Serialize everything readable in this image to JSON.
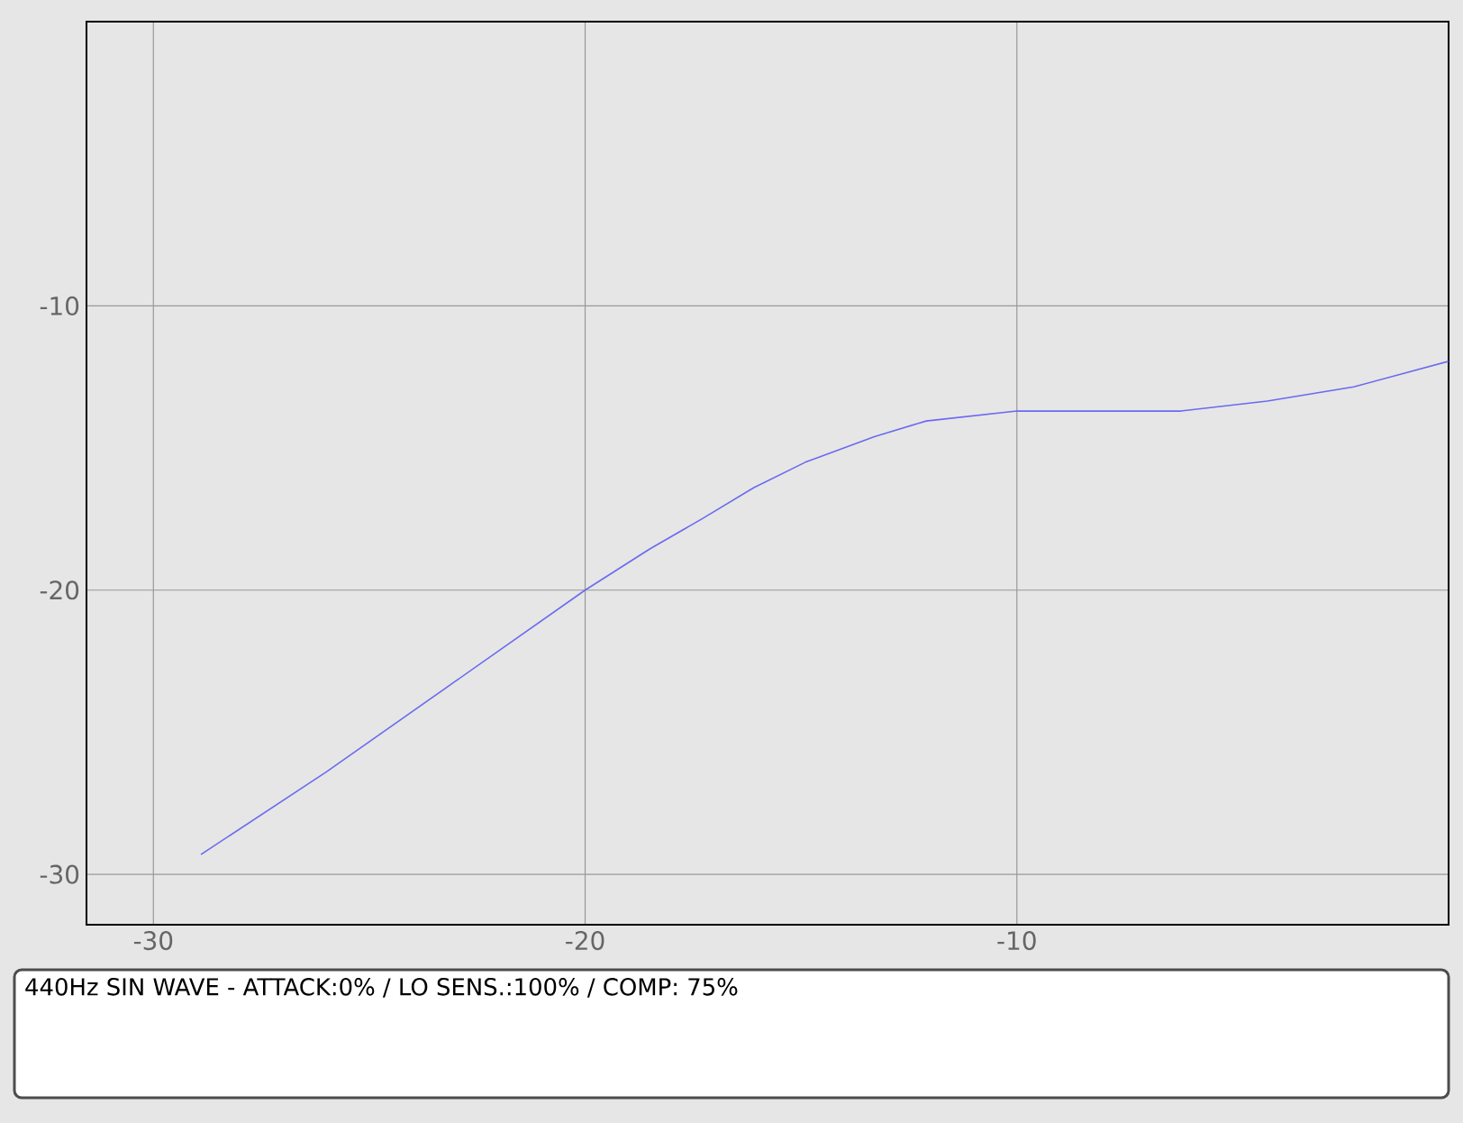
{
  "chart_data": {
    "type": "line",
    "x": [
      -28.9,
      -26,
      -23,
      -20,
      -18.5,
      -17.3,
      -16.1,
      -14.9,
      -13.3,
      -12.1,
      -10,
      -8.2,
      -6.2,
      -4.2,
      -2.2,
      0
    ],
    "series": [
      {
        "color": "#6a6af0",
        "values": [
          -29.3,
          -26.4,
          -23.2,
          -20,
          -18.55,
          -17.5,
          -16.4,
          -15.5,
          -14.6,
          -14.05,
          -13.7,
          -13.7,
          -13.7,
          -13.35,
          -12.85,
          -11.95
        ]
      }
    ],
    "xlim": [
      -31.55,
      0
    ],
    "ylim": [
      -31.77,
      0
    ],
    "xticks": [
      -30,
      -20,
      -10
    ],
    "yticks": [
      -30,
      -20,
      -10
    ],
    "grid": true,
    "marker": "none",
    "line_style": "solid",
    "annotations": [
      "440Hz SIN WAVE - ATTACK:0% / LO SENS.:100% / COMP: 75%"
    ]
  }
}
